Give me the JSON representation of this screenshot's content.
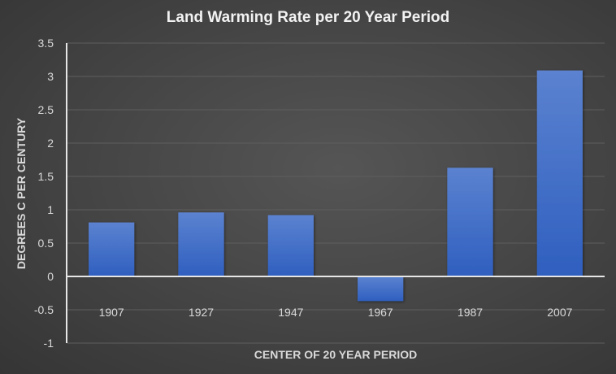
{
  "chart_data": {
    "type": "bar",
    "title": "Land Warming Rate per 20 Year Period",
    "xlabel": "CENTER OF 20 YEAR PERIOD",
    "ylabel": "DEGREES C PER CENTURY",
    "categories": [
      "1907",
      "1927",
      "1947",
      "1967",
      "1987",
      "2007"
    ],
    "values": [
      0.81,
      0.96,
      0.92,
      -0.37,
      1.63,
      3.09
    ],
    "ylim": [
      -1,
      3.5
    ],
    "yticks": [
      -1,
      -0.5,
      0,
      0.5,
      1,
      1.5,
      2,
      2.5,
      3,
      3.5
    ],
    "ytick_labels": [
      "-1",
      "-0.5",
      "0",
      "0.5",
      "1",
      "1.5",
      "2",
      "2.5",
      "3",
      "3.5"
    ],
    "grid": true,
    "legend": "none",
    "colors": {
      "bar_top": "#5b82d0",
      "bar_bottom": "#2f5fbf",
      "background": "#454545"
    }
  }
}
